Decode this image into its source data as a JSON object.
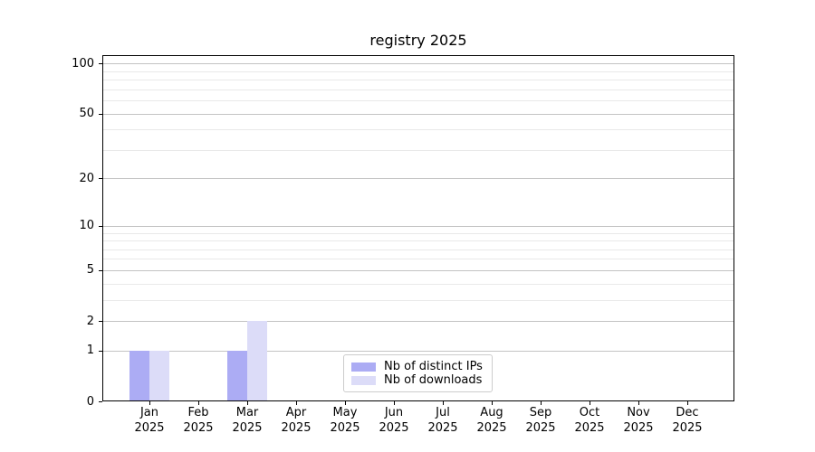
{
  "chart_data": {
    "type": "bar",
    "title": "registry 2025",
    "categories": [
      "Jan 2025",
      "Feb 2025",
      "Mar 2025",
      "Apr 2025",
      "May 2025",
      "Jun 2025",
      "Jul 2025",
      "Aug 2025",
      "Sep 2025",
      "Oct 2025",
      "Nov 2025",
      "Dec 2025"
    ],
    "series": [
      {
        "name": "Nb of distinct IPs",
        "color": "#acacf4",
        "values": [
          1,
          0,
          1,
          0,
          0,
          0,
          0,
          0,
          0,
          0,
          0,
          0
        ]
      },
      {
        "name": "Nb of downloads",
        "color": "#dcdcf8",
        "values": [
          1,
          0,
          2,
          0,
          0,
          0,
          0,
          0,
          0,
          0,
          0,
          0
        ]
      }
    ],
    "xlabel": "",
    "ylabel": "",
    "y_axis": {
      "scale": "log1p",
      "ticks": [
        0,
        1,
        2,
        5,
        10,
        20,
        50,
        100
      ],
      "minor_gridlines": [
        3,
        4,
        6,
        7,
        8,
        9,
        30,
        40,
        60,
        70,
        80,
        90
      ],
      "ylim": [
        0,
        112
      ]
    },
    "grid": "horizontal",
    "legend": {
      "position": "bottom-center-inside",
      "labels": [
        "Nb of distinct IPs",
        "Nb of downloads"
      ]
    },
    "colors": {
      "background": "#ffffff",
      "axis": "#000000",
      "major_grid": "#c3c3c3",
      "minor_grid": "#e9e9e9"
    }
  }
}
